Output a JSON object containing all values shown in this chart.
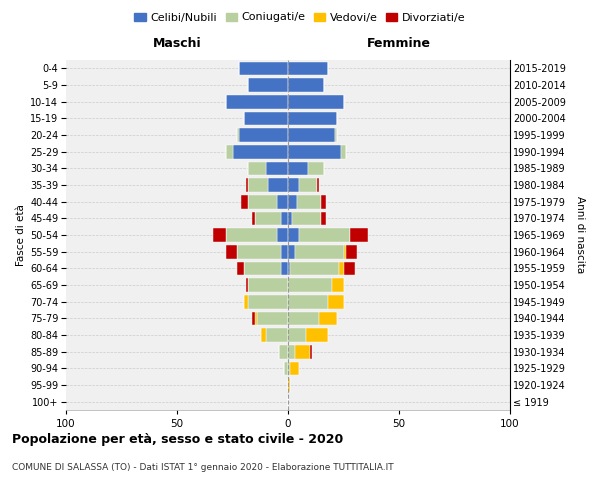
{
  "age_groups": [
    "100+",
    "95-99",
    "90-94",
    "85-89",
    "80-84",
    "75-79",
    "70-74",
    "65-69",
    "60-64",
    "55-59",
    "50-54",
    "45-49",
    "40-44",
    "35-39",
    "30-34",
    "25-29",
    "20-24",
    "15-19",
    "10-14",
    "5-9",
    "0-4"
  ],
  "birth_years": [
    "≤ 1919",
    "1920-1924",
    "1925-1929",
    "1930-1934",
    "1935-1939",
    "1940-1944",
    "1945-1949",
    "1950-1954",
    "1955-1959",
    "1960-1964",
    "1965-1969",
    "1970-1974",
    "1975-1979",
    "1980-1984",
    "1985-1989",
    "1990-1994",
    "1995-1999",
    "2000-2004",
    "2005-2009",
    "2010-2014",
    "2015-2019"
  ],
  "maschi": {
    "celibi": [
      0,
      0,
      0,
      0,
      0,
      0,
      0,
      0,
      3,
      3,
      5,
      3,
      5,
      9,
      10,
      25,
      22,
      20,
      28,
      18,
      22
    ],
    "coniugati": [
      0,
      0,
      2,
      4,
      10,
      14,
      18,
      18,
      17,
      20,
      23,
      12,
      13,
      9,
      8,
      3,
      1,
      0,
      0,
      0,
      0
    ],
    "vedovi": [
      0,
      0,
      0,
      0,
      2,
      1,
      2,
      0,
      0,
      0,
      0,
      0,
      0,
      0,
      0,
      0,
      0,
      0,
      0,
      0,
      0
    ],
    "divorziati": [
      0,
      0,
      0,
      0,
      0,
      1,
      0,
      1,
      3,
      5,
      6,
      1,
      3,
      1,
      0,
      0,
      0,
      0,
      0,
      0,
      0
    ]
  },
  "femmine": {
    "nubili": [
      0,
      0,
      0,
      0,
      0,
      0,
      0,
      0,
      1,
      3,
      5,
      2,
      4,
      5,
      9,
      24,
      21,
      22,
      25,
      16,
      18
    ],
    "coniugate": [
      0,
      0,
      1,
      3,
      8,
      14,
      18,
      20,
      22,
      22,
      23,
      13,
      11,
      8,
      7,
      2,
      1,
      0,
      0,
      0,
      0
    ],
    "vedove": [
      0,
      1,
      4,
      7,
      10,
      8,
      7,
      5,
      2,
      1,
      0,
      0,
      0,
      0,
      0,
      0,
      0,
      0,
      0,
      0,
      0
    ],
    "divorziate": [
      0,
      0,
      0,
      1,
      0,
      0,
      0,
      0,
      5,
      5,
      8,
      2,
      2,
      1,
      0,
      0,
      0,
      0,
      0,
      0,
      0
    ]
  },
  "colors": {
    "celibi_nubili": "#4472c4",
    "coniugati": "#b8cfa0",
    "vedovi": "#ffc000",
    "divorziati": "#c00000"
  },
  "xlim": 100,
  "title": "Popolazione per età, sesso e stato civile - 2020",
  "subtitle": "COMUNE DI SALASSA (TO) - Dati ISTAT 1° gennaio 2020 - Elaborazione TUTTITALIA.IT",
  "xlabel_left": "Maschi",
  "xlabel_right": "Femmine",
  "ylabel_left": "Fasce di età",
  "ylabel_right": "Anni di nascita",
  "legend_labels": [
    "Celibi/Nubili",
    "Coniugati/e",
    "Vedovi/e",
    "Divorziati/e"
  ],
  "background_color": "#ffffff",
  "grid_color": "#cccccc"
}
